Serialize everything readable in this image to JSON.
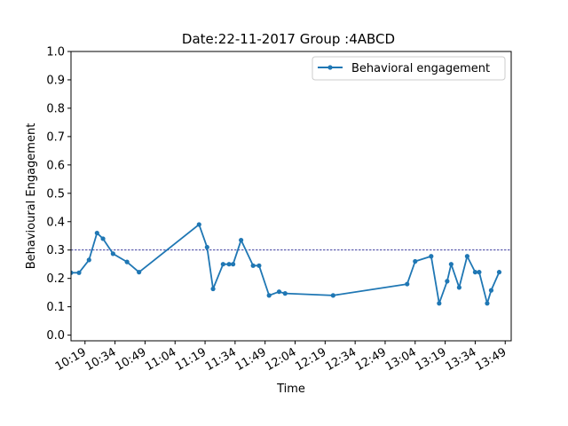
{
  "chart_data": {
    "type": "line",
    "title": "Date:22-11-2017 Group :4ABCD",
    "xlabel": "Time",
    "ylabel": "Behavioural Engagement",
    "xlim": [
      "10:12",
      "13:52"
    ],
    "ylim": [
      -0.02,
      1.0
    ],
    "x_ticks": [
      "10:19",
      "10:34",
      "10:49",
      "11:04",
      "11:19",
      "11:34",
      "11:49",
      "12:04",
      "12:19",
      "12:34",
      "12:49",
      "13:04",
      "13:19",
      "13:34",
      "13:49"
    ],
    "y_ticks": [
      "0.0",
      "0.1",
      "0.2",
      "0.3",
      "0.4",
      "0.5",
      "0.6",
      "0.7",
      "0.8",
      "0.9",
      "1.0"
    ],
    "reference_line": {
      "y": 0.3,
      "style": "dashed"
    },
    "grid": false,
    "legend_position": "top-right",
    "series": [
      {
        "name": "Behavioral engagement",
        "color": "#1f77b4",
        "marker": "dot",
        "x": [
          "10:12",
          "10:16",
          "10:21",
          "10:25",
          "10:28",
          "10:33",
          "10:40",
          "10:46",
          "11:16",
          "11:20",
          "11:23",
          "11:28",
          "11:31",
          "11:33",
          "11:37",
          "11:43",
          "11:46",
          "11:51",
          "11:56",
          "11:59",
          "12:23",
          "13:00",
          "13:04",
          "13:12",
          "13:16",
          "13:20",
          "13:22",
          "13:26",
          "13:30",
          "13:34",
          "13:36",
          "13:40",
          "13:42",
          "13:46"
        ],
        "y": [
          0.22,
          0.22,
          0.265,
          0.36,
          0.34,
          0.287,
          0.258,
          0.222,
          0.39,
          0.31,
          0.163,
          0.25,
          0.25,
          0.25,
          0.335,
          0.245,
          0.245,
          0.14,
          0.153,
          0.147,
          0.14,
          0.18,
          0.26,
          0.278,
          0.112,
          0.19,
          0.25,
          0.168,
          0.278,
          0.222,
          0.222,
          0.112,
          0.158,
          0.222
        ]
      }
    ]
  }
}
